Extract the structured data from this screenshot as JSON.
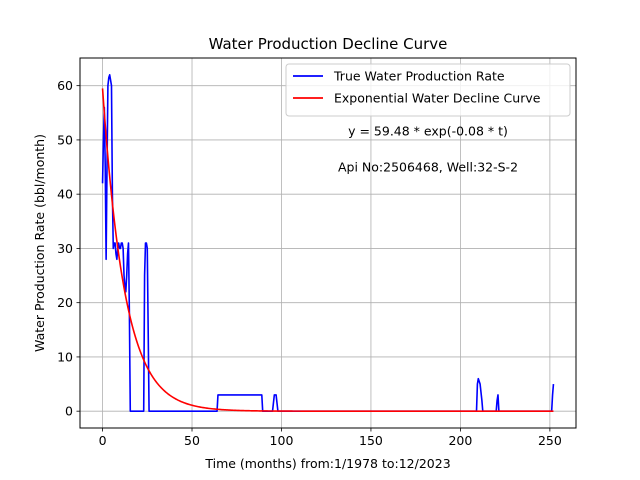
{
  "chart_data": {
    "type": "line",
    "title": "Water Production Decline Curve",
    "xlabel": "Time (months) from:1/1978 to:12/2023",
    "ylabel": "Water Production Rate (bbl/month)",
    "xlim": [
      -12.6,
      264.6
    ],
    "ylim": [
      -3.1,
      65.1
    ],
    "xticks": [
      0,
      50,
      100,
      150,
      200,
      250
    ],
    "yticks": [
      0,
      10,
      20,
      30,
      40,
      50,
      60
    ],
    "grid": true,
    "legend": "upper right",
    "annotations": [
      "y = 59.48 * exp(-0.08 * t)",
      "Api No:2506468, Well:32-S-2"
    ],
    "series": [
      {
        "name": "True Water Production Rate",
        "color": "#0000ff",
        "points": [
          [
            0,
            42
          ],
          [
            0.5,
            50
          ],
          [
            1,
            56
          ],
          [
            1.5,
            45
          ],
          [
            2,
            28
          ],
          [
            2.5,
            45
          ],
          [
            3,
            60
          ],
          [
            3.5,
            61.5
          ],
          [
            4,
            62
          ],
          [
            4.5,
            61
          ],
          [
            5,
            60
          ],
          [
            5.5,
            40
          ],
          [
            6,
            30
          ],
          [
            6.5,
            31
          ],
          [
            7,
            31
          ],
          [
            7.5,
            29
          ],
          [
            8,
            28
          ],
          [
            8.5,
            30
          ],
          [
            9,
            31
          ],
          [
            9.5,
            30
          ],
          [
            10,
            30
          ],
          [
            10.5,
            31
          ],
          [
            11,
            31
          ],
          [
            11.5,
            30
          ],
          [
            12,
            25
          ],
          [
            12.5,
            23
          ],
          [
            13,
            22
          ],
          [
            13.5,
            25
          ],
          [
            14,
            29
          ],
          [
            14.5,
            31
          ],
          [
            15,
            18
          ],
          [
            15.5,
            0
          ],
          [
            16,
            0
          ],
          [
            23,
            0
          ],
          [
            23.5,
            25
          ],
          [
            24,
            31
          ],
          [
            24.5,
            31
          ],
          [
            25,
            30
          ],
          [
            25.5,
            15
          ],
          [
            26,
            0
          ],
          [
            64,
            0
          ],
          [
            64.5,
            3
          ],
          [
            89,
            3
          ],
          [
            89.5,
            0
          ],
          [
            95,
            0
          ],
          [
            96,
            3
          ],
          [
            97,
            3
          ],
          [
            98,
            0
          ],
          [
            209,
            0
          ],
          [
            209.5,
            5
          ],
          [
            210,
            6
          ],
          [
            211,
            5
          ],
          [
            212,
            2
          ],
          [
            212.5,
            0
          ],
          [
            220,
            0
          ],
          [
            220.5,
            2
          ],
          [
            221,
            3
          ],
          [
            221.5,
            0
          ],
          [
            251,
            0
          ],
          [
            251.5,
            3
          ],
          [
            252,
            5
          ]
        ]
      },
      {
        "name": "Exponential Water Decline Curve",
        "color": "#ff0000",
        "function": {
          "a": 59.48,
          "b": 0.08,
          "t_min": 0,
          "t_max": 252
        }
      }
    ]
  }
}
